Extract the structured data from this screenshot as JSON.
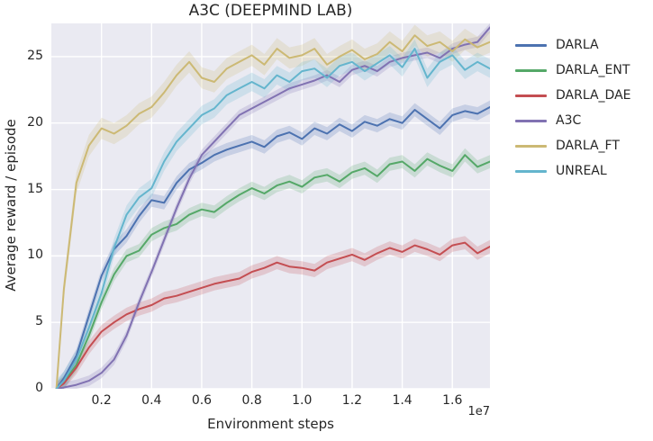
{
  "chart_data": {
    "type": "line",
    "title": "A3C (DEEPMIND LAB)",
    "xlabel": "Environment steps",
    "ylabel": "Average reward / episode",
    "x_offset_label": "1e7",
    "xlim": [
      0,
      1.75
    ],
    "ylim": [
      0,
      27.5
    ],
    "xticks": [
      0.2,
      0.4,
      0.6,
      0.8,
      1.0,
      1.2,
      1.4,
      1.6
    ],
    "yticks": [
      0,
      5,
      10,
      15,
      20,
      25
    ],
    "grid": true,
    "legend_position": "right-outside",
    "plot_background": "#EAEAF2",
    "grid_color": "#FFFFFF",
    "x": [
      0.02,
      0.05,
      0.1,
      0.15,
      0.2,
      0.25,
      0.3,
      0.35,
      0.4,
      0.45,
      0.5,
      0.55,
      0.6,
      0.65,
      0.7,
      0.75,
      0.8,
      0.85,
      0.9,
      0.95,
      1.0,
      1.05,
      1.1,
      1.15,
      1.2,
      1.25,
      1.3,
      1.35,
      1.4,
      1.45,
      1.5,
      1.55,
      1.6,
      1.65,
      1.7,
      1.75
    ],
    "series": [
      {
        "name": "DARLA",
        "color": "#4C72B0",
        "band": 0.5,
        "values": [
          0,
          0.8,
          2.5,
          5.5,
          8.5,
          10.5,
          11.5,
          13.0,
          14.2,
          14.0,
          15.5,
          16.5,
          17.0,
          17.6,
          18.0,
          18.3,
          18.6,
          18.2,
          19.0,
          19.3,
          18.8,
          19.6,
          19.2,
          19.9,
          19.4,
          20.1,
          19.8,
          20.3,
          20.0,
          21.0,
          20.3,
          19.6,
          20.6,
          20.9,
          20.7,
          21.2
        ]
      },
      {
        "name": "DARLA_ENT",
        "color": "#55A868",
        "band": 0.5,
        "values": [
          0,
          0.5,
          1.8,
          4.0,
          6.5,
          8.6,
          10.0,
          10.4,
          11.6,
          12.1,
          12.4,
          13.1,
          13.5,
          13.3,
          14.0,
          14.6,
          15.1,
          14.7,
          15.3,
          15.6,
          15.2,
          15.9,
          16.1,
          15.6,
          16.3,
          16.6,
          16.0,
          16.9,
          17.1,
          16.4,
          17.3,
          16.8,
          16.4,
          17.6,
          16.7,
          17.1
        ]
      },
      {
        "name": "DARLA_DAE",
        "color": "#C44E52",
        "band": 0.5,
        "values": [
          0,
          0.4,
          1.6,
          3.1,
          4.3,
          5.0,
          5.6,
          6.0,
          6.3,
          6.8,
          7.0,
          7.3,
          7.6,
          7.9,
          8.1,
          8.3,
          8.8,
          9.1,
          9.5,
          9.2,
          9.1,
          8.9,
          9.5,
          9.8,
          10.1,
          9.7,
          10.2,
          10.6,
          10.3,
          10.8,
          10.5,
          10.1,
          10.8,
          11.0,
          10.2,
          10.7
        ]
      },
      {
        "name": "A3C",
        "color": "#8172B2",
        "band": 0.4,
        "values": [
          0,
          0.1,
          0.3,
          0.6,
          1.2,
          2.2,
          4.0,
          6.5,
          8.8,
          11.2,
          13.6,
          15.8,
          17.6,
          18.6,
          19.6,
          20.6,
          21.1,
          21.6,
          22.1,
          22.6,
          22.9,
          23.2,
          23.6,
          23.1,
          24.0,
          24.3,
          23.9,
          24.6,
          24.9,
          25.1,
          25.3,
          24.9,
          25.6,
          25.9,
          26.1,
          27.2
        ]
      },
      {
        "name": "DARLA_FT",
        "color": "#CCB974",
        "band": 0.8,
        "values": [
          0,
          7.5,
          15.5,
          18.3,
          19.6,
          19.2,
          19.8,
          20.7,
          21.2,
          22.3,
          23.6,
          24.6,
          23.4,
          23.1,
          24.1,
          24.6,
          25.1,
          24.4,
          25.6,
          24.9,
          25.1,
          25.6,
          24.4,
          25.0,
          25.5,
          24.8,
          25.2,
          26.1,
          25.4,
          26.6,
          25.8,
          26.1,
          25.4,
          26.3,
          25.7,
          26.1
        ]
      },
      {
        "name": "UNREAL",
        "color": "#64B5CD",
        "band": 0.7,
        "values": [
          0,
          0.6,
          2.2,
          4.6,
          7.2,
          10.6,
          13.1,
          14.4,
          15.1,
          17.1,
          18.6,
          19.6,
          20.6,
          21.1,
          22.1,
          22.6,
          23.1,
          22.6,
          23.6,
          23.1,
          23.9,
          24.1,
          23.4,
          24.3,
          24.6,
          23.9,
          24.5,
          25.1,
          24.2,
          25.6,
          23.4,
          24.6,
          25.1,
          24.0,
          24.6,
          24.1
        ]
      }
    ]
  }
}
